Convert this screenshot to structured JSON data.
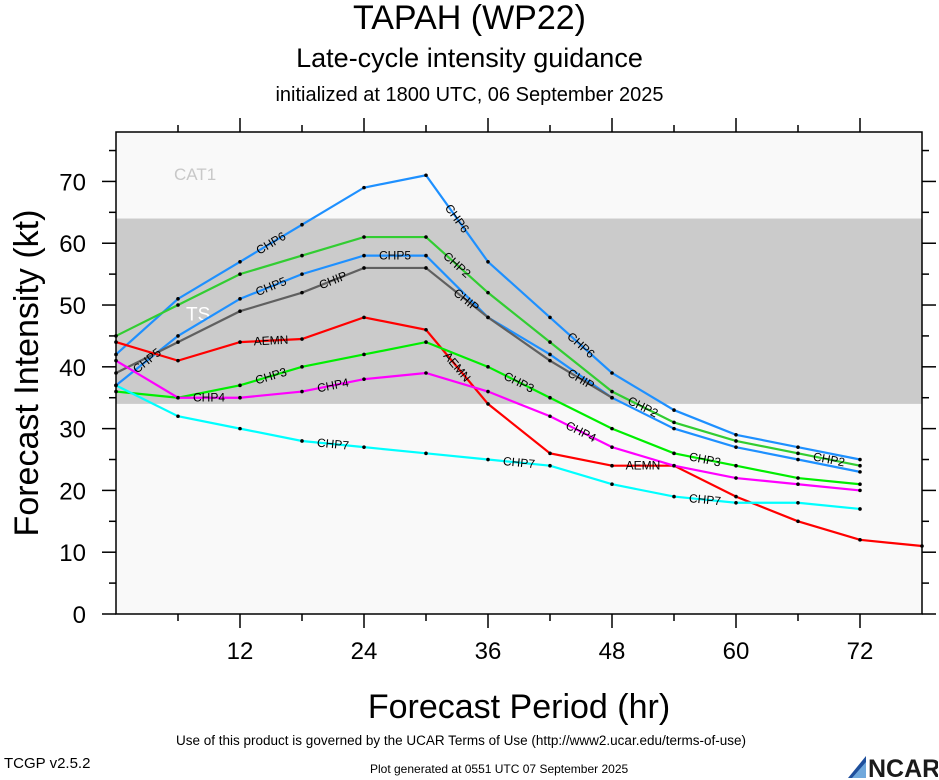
{
  "header": {
    "title": "TAPAH (WP22)",
    "subtitle": "Late-cycle intensity guidance",
    "init": "initialized at 1800 UTC, 06 September 2025"
  },
  "footer": {
    "terms": "Use of this product is governed by the UCAR Terms of Use (http://www2.ucar.edu/terms-of-use)",
    "version": "TCGP v2.5.2",
    "generated": "Plot generated at 0551 UTC   07 September 2025",
    "logo_text": "NCAR"
  },
  "chart_data": {
    "type": "line",
    "xlabel": "Forecast Period (hr)",
    "ylabel": "Forecast Intensity (kt)",
    "xlim": [
      0,
      78
    ],
    "ylim": [
      0,
      78
    ],
    "xticks": [
      12,
      24,
      36,
      48,
      60,
      72
    ],
    "yticks": [
      0,
      10,
      20,
      30,
      40,
      50,
      60,
      70
    ],
    "grid": false,
    "bands": [
      {
        "label": "TS",
        "from": 34,
        "to": 64,
        "color": "#cbcbcb"
      },
      {
        "label": "CAT1",
        "from": 64,
        "to": 78,
        "color": "#f9f9f9"
      }
    ],
    "below_band_color": "#f9f9f9",
    "series": [
      {
        "name": "CHP6",
        "color": "#1e90ff",
        "x": [
          0,
          6,
          12,
          18,
          24,
          30,
          36,
          42,
          48,
          54,
          60,
          66,
          72
        ],
        "y": [
          42,
          51,
          57,
          63,
          69,
          71,
          57,
          48,
          39,
          33,
          29,
          27,
          25
        ]
      },
      {
        "name": "CHP2",
        "color": "#32cd32",
        "x": [
          0,
          6,
          12,
          18,
          24,
          30,
          36,
          42,
          48,
          54,
          60,
          66,
          72
        ],
        "y": [
          45,
          50,
          55,
          58,
          61,
          61,
          52,
          44,
          36,
          31,
          28,
          26,
          24
        ]
      },
      {
        "name": "CHP5",
        "color": "#1e90ff",
        "x": [
          0,
          6,
          12,
          18,
          24,
          30,
          36,
          42,
          48,
          54,
          60,
          66,
          72
        ],
        "y": [
          37,
          45,
          51,
          55,
          58,
          58,
          48,
          42,
          35,
          30,
          27,
          25,
          23
        ]
      },
      {
        "name": "CHIP",
        "color": "#606060",
        "x": [
          0,
          6,
          12,
          18,
          24,
          30,
          36,
          42,
          48
        ],
        "y": [
          39,
          44,
          49,
          52,
          56,
          56,
          48,
          41,
          35
        ]
      },
      {
        "name": "AEMN",
        "color": "#ff0000",
        "x": [
          0,
          6,
          12,
          18,
          24,
          30,
          36,
          42,
          48,
          54,
          60,
          66,
          72,
          78
        ],
        "y": [
          44,
          41,
          44,
          44.5,
          48,
          46,
          34,
          26,
          24,
          24,
          19,
          15,
          12,
          11
        ]
      },
      {
        "name": "CHP3",
        "color": "#00ee00",
        "x": [
          0,
          6,
          12,
          18,
          24,
          30,
          36,
          42,
          48,
          54,
          60,
          66,
          72
        ],
        "y": [
          36,
          35,
          37,
          40,
          42,
          44,
          40,
          35,
          30,
          26,
          24,
          22,
          21
        ]
      },
      {
        "name": "CHP4",
        "color": "#ff00ff",
        "x": [
          0,
          6,
          12,
          18,
          24,
          30,
          36,
          42,
          48,
          54,
          60,
          66,
          72
        ],
        "y": [
          41,
          35,
          35,
          36,
          38,
          39,
          36,
          32,
          27,
          24,
          22,
          21,
          20
        ]
      },
      {
        "name": "CHP7",
        "color": "#00ffff",
        "x": [
          0,
          6,
          12,
          18,
          24,
          30,
          36,
          42,
          48,
          54,
          60,
          66,
          72
        ],
        "y": [
          37,
          32,
          30,
          28,
          27,
          26,
          25,
          24,
          21,
          19,
          18,
          18,
          17
        ]
      }
    ]
  }
}
